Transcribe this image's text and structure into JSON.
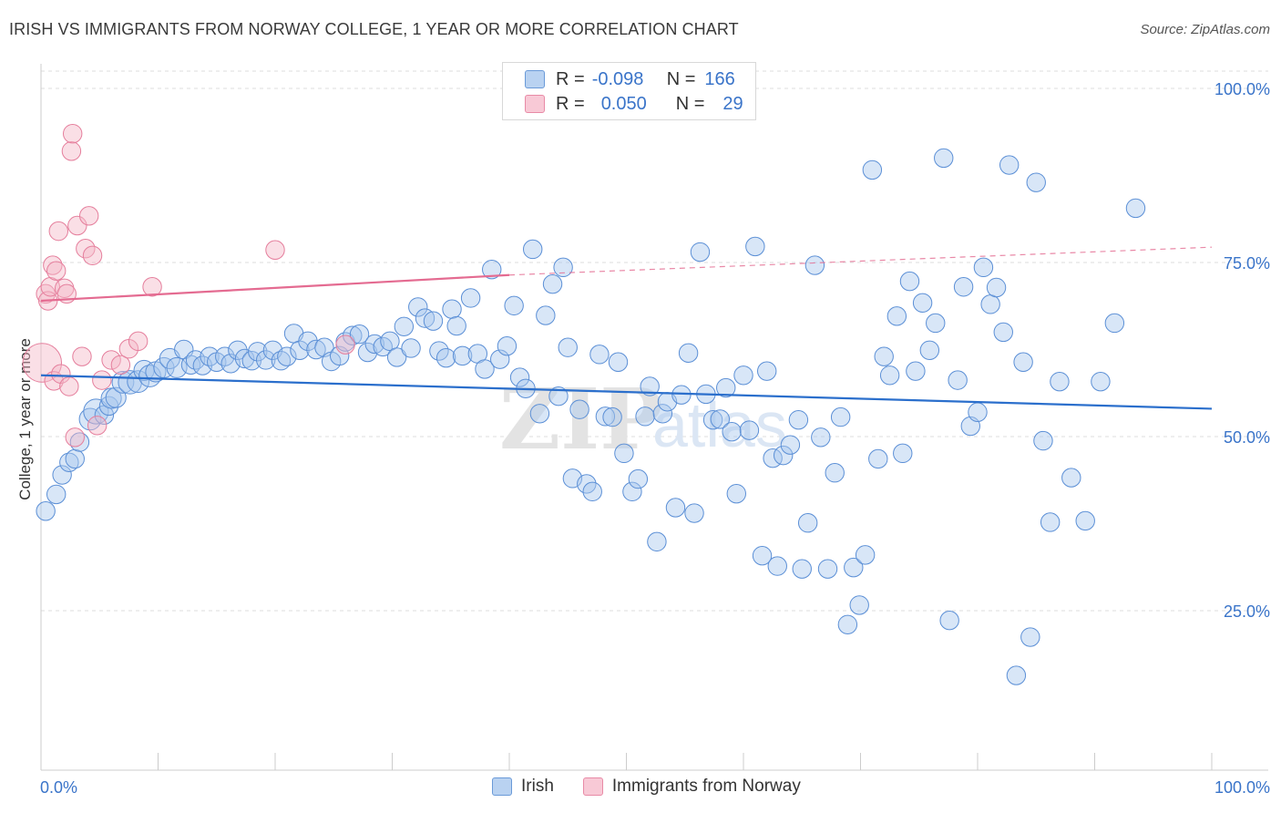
{
  "header": {
    "title": "IRISH VS IMMIGRANTS FROM NORWAY COLLEGE, 1 YEAR OR MORE CORRELATION CHART",
    "source": "Source: ZipAtlas.com"
  },
  "colors": {
    "irish_fill": "#a9c8ee",
    "irish_stroke": "#5b8fd6",
    "irish_line": "#2b6fcc",
    "norway_fill": "#f5b8c8",
    "norway_stroke": "#e57e9c",
    "norway_line": "#e46b91",
    "axis_label": "#3a74c9",
    "grid": "#dddddd"
  },
  "legend_top": {
    "rows": [
      {
        "r_label": "R =",
        "r_value": "-0.098",
        "n_label": "N =",
        "n_value": "166"
      },
      {
        "r_label": "R =",
        "r_value": "0.050",
        "n_label": "N =",
        "n_value": "29"
      }
    ]
  },
  "watermark": {
    "zip": "ZIP",
    "atlas": "atlas"
  },
  "chart_data": {
    "type": "scatter",
    "title": "IRISH VS IMMIGRANTS FROM NORWAY COLLEGE, 1 YEAR OR MORE CORRELATION CHART",
    "xlabel": "",
    "ylabel": "College, 1 year or more",
    "xlim": [
      0,
      100
    ],
    "ylim": [
      0,
      105
    ],
    "x_tick_labels": [
      "0.0%",
      "100.0%"
    ],
    "y_tick_labels": [
      "25.0%",
      "50.0%",
      "75.0%",
      "100.0%"
    ],
    "y_ticks": [
      25,
      50,
      75,
      100
    ],
    "grid": true,
    "legend_position": "bottom-center",
    "series": [
      {
        "name": "Irish",
        "trend": {
          "x": [
            0,
            100
          ],
          "y": [
            58.8,
            54.0
          ]
        },
        "points": [
          [
            0.4,
            39.3,
            1.2
          ],
          [
            1.3,
            41.7,
            1.2
          ],
          [
            1.8,
            44.5,
            1.2
          ],
          [
            2.4,
            46.3,
            1.2
          ],
          [
            2.9,
            46.8,
            1.2
          ],
          [
            3.3,
            49.2,
            1.2
          ],
          [
            4.2,
            52.5,
            1.4
          ],
          [
            4.7,
            53.6,
            1.6
          ],
          [
            5.4,
            53.1,
            1.2
          ],
          [
            5.8,
            54.4,
            1.2
          ],
          [
            6.0,
            55.5,
            1.3
          ],
          [
            6.4,
            55.6,
            1.3
          ],
          [
            7.0,
            57.8,
            1.4
          ],
          [
            7.6,
            57.8,
            1.5
          ],
          [
            8.3,
            57.9,
            1.4
          ],
          [
            8.8,
            59.5,
            1.3
          ],
          [
            9.3,
            58.7,
            1.4
          ],
          [
            9.8,
            59.3,
            1.3
          ],
          [
            10.5,
            59.9,
            1.3
          ],
          [
            11.0,
            61.2,
            1.3
          ],
          [
            11.6,
            59.9,
            1.3
          ],
          [
            12.2,
            62.5,
            1.2
          ],
          [
            12.8,
            60.3,
            1.2
          ],
          [
            13.2,
            61.0,
            1.2
          ],
          [
            13.8,
            60.2,
            1.2
          ],
          [
            14.4,
            61.5,
            1.2
          ],
          [
            15.0,
            60.7,
            1.2
          ],
          [
            15.7,
            61.5,
            1.2
          ],
          [
            16.2,
            60.5,
            1.2
          ],
          [
            16.8,
            62.4,
            1.2
          ],
          [
            17.4,
            61.2,
            1.2
          ],
          [
            18.0,
            60.9,
            1.2
          ],
          [
            18.5,
            62.2,
            1.2
          ],
          [
            19.2,
            61.0,
            1.2
          ],
          [
            19.8,
            62.4,
            1.2
          ],
          [
            20.5,
            60.9,
            1.2
          ],
          [
            21.0,
            61.5,
            1.2
          ],
          [
            21.6,
            64.8,
            1.2
          ],
          [
            22.1,
            62.4,
            1.2
          ],
          [
            22.8,
            63.7,
            1.2
          ],
          [
            23.5,
            62.5,
            1.2
          ],
          [
            24.2,
            62.8,
            1.2
          ],
          [
            24.8,
            60.8,
            1.2
          ],
          [
            25.5,
            61.6,
            1.2
          ],
          [
            26.0,
            63.6,
            1.2
          ],
          [
            26.6,
            64.5,
            1.2
          ],
          [
            27.2,
            64.7,
            1.2
          ],
          [
            27.9,
            62.1,
            1.2
          ],
          [
            28.5,
            63.3,
            1.2
          ],
          [
            29.2,
            62.9,
            1.2
          ],
          [
            29.8,
            63.7,
            1.2
          ],
          [
            30.4,
            61.4,
            1.2
          ],
          [
            31.0,
            65.8,
            1.2
          ],
          [
            31.6,
            62.7,
            1.2
          ],
          [
            32.2,
            68.6,
            1.2
          ],
          [
            32.8,
            67.0,
            1.2
          ],
          [
            33.5,
            66.6,
            1.2
          ],
          [
            34.0,
            62.3,
            1.2
          ],
          [
            34.6,
            61.3,
            1.2
          ],
          [
            35.1,
            68.3,
            1.2
          ],
          [
            35.5,
            65.9,
            1.2
          ],
          [
            36.0,
            61.6,
            1.2
          ],
          [
            36.7,
            69.9,
            1.2
          ],
          [
            37.3,
            61.9,
            1.2
          ],
          [
            37.9,
            59.7,
            1.2
          ],
          [
            38.5,
            74.0,
            1.2
          ],
          [
            39.2,
            61.1,
            1.2
          ],
          [
            39.8,
            63.0,
            1.2
          ],
          [
            40.4,
            68.8,
            1.2
          ],
          [
            40.9,
            58.5,
            1.2
          ],
          [
            41.4,
            56.9,
            1.2
          ],
          [
            42.0,
            76.9,
            1.2
          ],
          [
            42.6,
            53.3,
            1.2
          ],
          [
            43.1,
            67.4,
            1.2
          ],
          [
            43.7,
            71.9,
            1.2
          ],
          [
            44.2,
            55.8,
            1.2
          ],
          [
            44.6,
            74.3,
            1.2
          ],
          [
            45.0,
            62.8,
            1.2
          ],
          [
            45.4,
            44.0,
            1.2
          ],
          [
            46.0,
            53.9,
            1.2
          ],
          [
            46.6,
            43.2,
            1.2
          ],
          [
            47.1,
            42.1,
            1.2
          ],
          [
            47.7,
            61.8,
            1.2
          ],
          [
            48.2,
            52.9,
            1.2
          ],
          [
            48.8,
            52.8,
            1.2
          ],
          [
            49.3,
            60.7,
            1.2
          ],
          [
            49.8,
            47.6,
            1.2
          ],
          [
            50.5,
            42.1,
            1.2
          ],
          [
            51.0,
            43.9,
            1.2
          ],
          [
            51.6,
            52.9,
            1.2
          ],
          [
            52.0,
            57.2,
            1.2
          ],
          [
            52.6,
            34.9,
            1.2
          ],
          [
            53.1,
            53.3,
            1.2
          ],
          [
            53.5,
            55.0,
            1.2
          ],
          [
            54.2,
            39.8,
            1.2
          ],
          [
            54.7,
            56.0,
            1.2
          ],
          [
            55.3,
            62.0,
            1.2
          ],
          [
            55.8,
            39.0,
            1.2
          ],
          [
            56.3,
            76.5,
            1.2
          ],
          [
            56.8,
            56.1,
            1.2
          ],
          [
            57.4,
            52.4,
            1.2
          ],
          [
            58.0,
            52.5,
            1.2
          ],
          [
            58.5,
            57.0,
            1.2
          ],
          [
            59.0,
            50.7,
            1.2
          ],
          [
            59.4,
            41.8,
            1.2
          ],
          [
            60.0,
            58.8,
            1.2
          ],
          [
            60.5,
            50.9,
            1.2
          ],
          [
            61.0,
            77.3,
            1.2
          ],
          [
            61.6,
            32.9,
            1.2
          ],
          [
            62.0,
            59.4,
            1.2
          ],
          [
            62.5,
            46.9,
            1.2
          ],
          [
            62.9,
            31.4,
            1.2
          ],
          [
            63.4,
            47.3,
            1.2
          ],
          [
            64.0,
            48.8,
            1.2
          ],
          [
            64.7,
            52.4,
            1.2
          ],
          [
            65.0,
            31.0,
            1.2
          ],
          [
            65.5,
            37.6,
            1.2
          ],
          [
            66.1,
            74.6,
            1.2
          ],
          [
            66.6,
            49.9,
            1.2
          ],
          [
            67.2,
            31.0,
            1.2
          ],
          [
            67.8,
            44.8,
            1.2
          ],
          [
            68.3,
            52.8,
            1.2
          ],
          [
            68.9,
            23.0,
            1.2
          ],
          [
            69.4,
            31.2,
            1.2
          ],
          [
            69.9,
            25.8,
            1.2
          ],
          [
            70.4,
            33.0,
            1.2
          ],
          [
            71.0,
            88.3,
            1.2
          ],
          [
            71.5,
            46.8,
            1.2
          ],
          [
            72.0,
            61.5,
            1.2
          ],
          [
            72.5,
            58.8,
            1.2
          ],
          [
            73.1,
            67.3,
            1.2
          ],
          [
            73.6,
            47.6,
            1.2
          ],
          [
            74.2,
            72.3,
            1.2
          ],
          [
            74.7,
            59.4,
            1.2
          ],
          [
            75.3,
            69.2,
            1.2
          ],
          [
            75.9,
            62.4,
            1.2
          ],
          [
            76.4,
            66.3,
            1.2
          ],
          [
            77.1,
            90.0,
            1.2
          ],
          [
            77.6,
            23.6,
            1.2
          ],
          [
            78.3,
            58.1,
            1.2
          ],
          [
            78.8,
            71.5,
            1.2
          ],
          [
            79.4,
            51.5,
            1.2
          ],
          [
            80.0,
            53.5,
            1.2
          ],
          [
            80.5,
            74.3,
            1.2
          ],
          [
            81.1,
            69.0,
            1.2
          ],
          [
            81.6,
            71.4,
            1.2
          ],
          [
            82.2,
            65.0,
            1.2
          ],
          [
            82.7,
            89.0,
            1.2
          ],
          [
            83.3,
            15.7,
            1.2
          ],
          [
            83.9,
            60.7,
            1.2
          ],
          [
            84.5,
            21.2,
            1.2
          ],
          [
            85.0,
            86.5,
            1.2
          ],
          [
            85.6,
            49.4,
            1.2
          ],
          [
            86.2,
            37.7,
            1.2
          ],
          [
            87.0,
            57.9,
            1.2
          ],
          [
            88.0,
            44.1,
            1.2
          ],
          [
            89.2,
            37.9,
            1.2
          ],
          [
            90.5,
            57.9,
            1.2
          ],
          [
            91.7,
            66.3,
            1.2
          ],
          [
            93.5,
            82.8,
            1.2
          ]
        ]
      },
      {
        "name": "Immigrants from Norway",
        "trend": {
          "x": [
            0,
            40
          ],
          "y": [
            69.5,
            73.2
          ]
        },
        "trend_extended": {
          "x": [
            40,
            100
          ],
          "y": [
            73.2,
            77.2
          ]
        },
        "points": [
          [
            0.1,
            60.6,
            2.5
          ],
          [
            0.4,
            70.5,
            1.2
          ],
          [
            0.6,
            69.5,
            1.2
          ],
          [
            0.8,
            71.5,
            1.2
          ],
          [
            1.0,
            74.6,
            1.2
          ],
          [
            1.1,
            58.0,
            1.2
          ],
          [
            1.3,
            73.8,
            1.2
          ],
          [
            1.5,
            79.5,
            1.2
          ],
          [
            1.7,
            59.0,
            1.2
          ],
          [
            2.0,
            71.3,
            1.2
          ],
          [
            2.2,
            70.5,
            1.2
          ],
          [
            2.4,
            57.2,
            1.2
          ],
          [
            2.6,
            91.0,
            1.2
          ],
          [
            2.7,
            93.5,
            1.2
          ],
          [
            2.9,
            49.9,
            1.2
          ],
          [
            3.1,
            80.3,
            1.2
          ],
          [
            3.5,
            61.5,
            1.2
          ],
          [
            3.8,
            77.0,
            1.2
          ],
          [
            4.1,
            81.7,
            1.2
          ],
          [
            4.4,
            76.0,
            1.2
          ],
          [
            4.8,
            51.6,
            1.2
          ],
          [
            5.2,
            58.1,
            1.2
          ],
          [
            6.0,
            61.0,
            1.2
          ],
          [
            6.8,
            60.3,
            1.2
          ],
          [
            7.5,
            62.6,
            1.2
          ],
          [
            8.3,
            63.7,
            1.2
          ],
          [
            9.5,
            71.5,
            1.2
          ],
          [
            20.0,
            76.8,
            1.2
          ],
          [
            26.0,
            63.2,
            1.2
          ]
        ]
      }
    ]
  },
  "bottom_legend": [
    {
      "label": "Irish"
    },
    {
      "label": "Immigrants from Norway"
    }
  ]
}
